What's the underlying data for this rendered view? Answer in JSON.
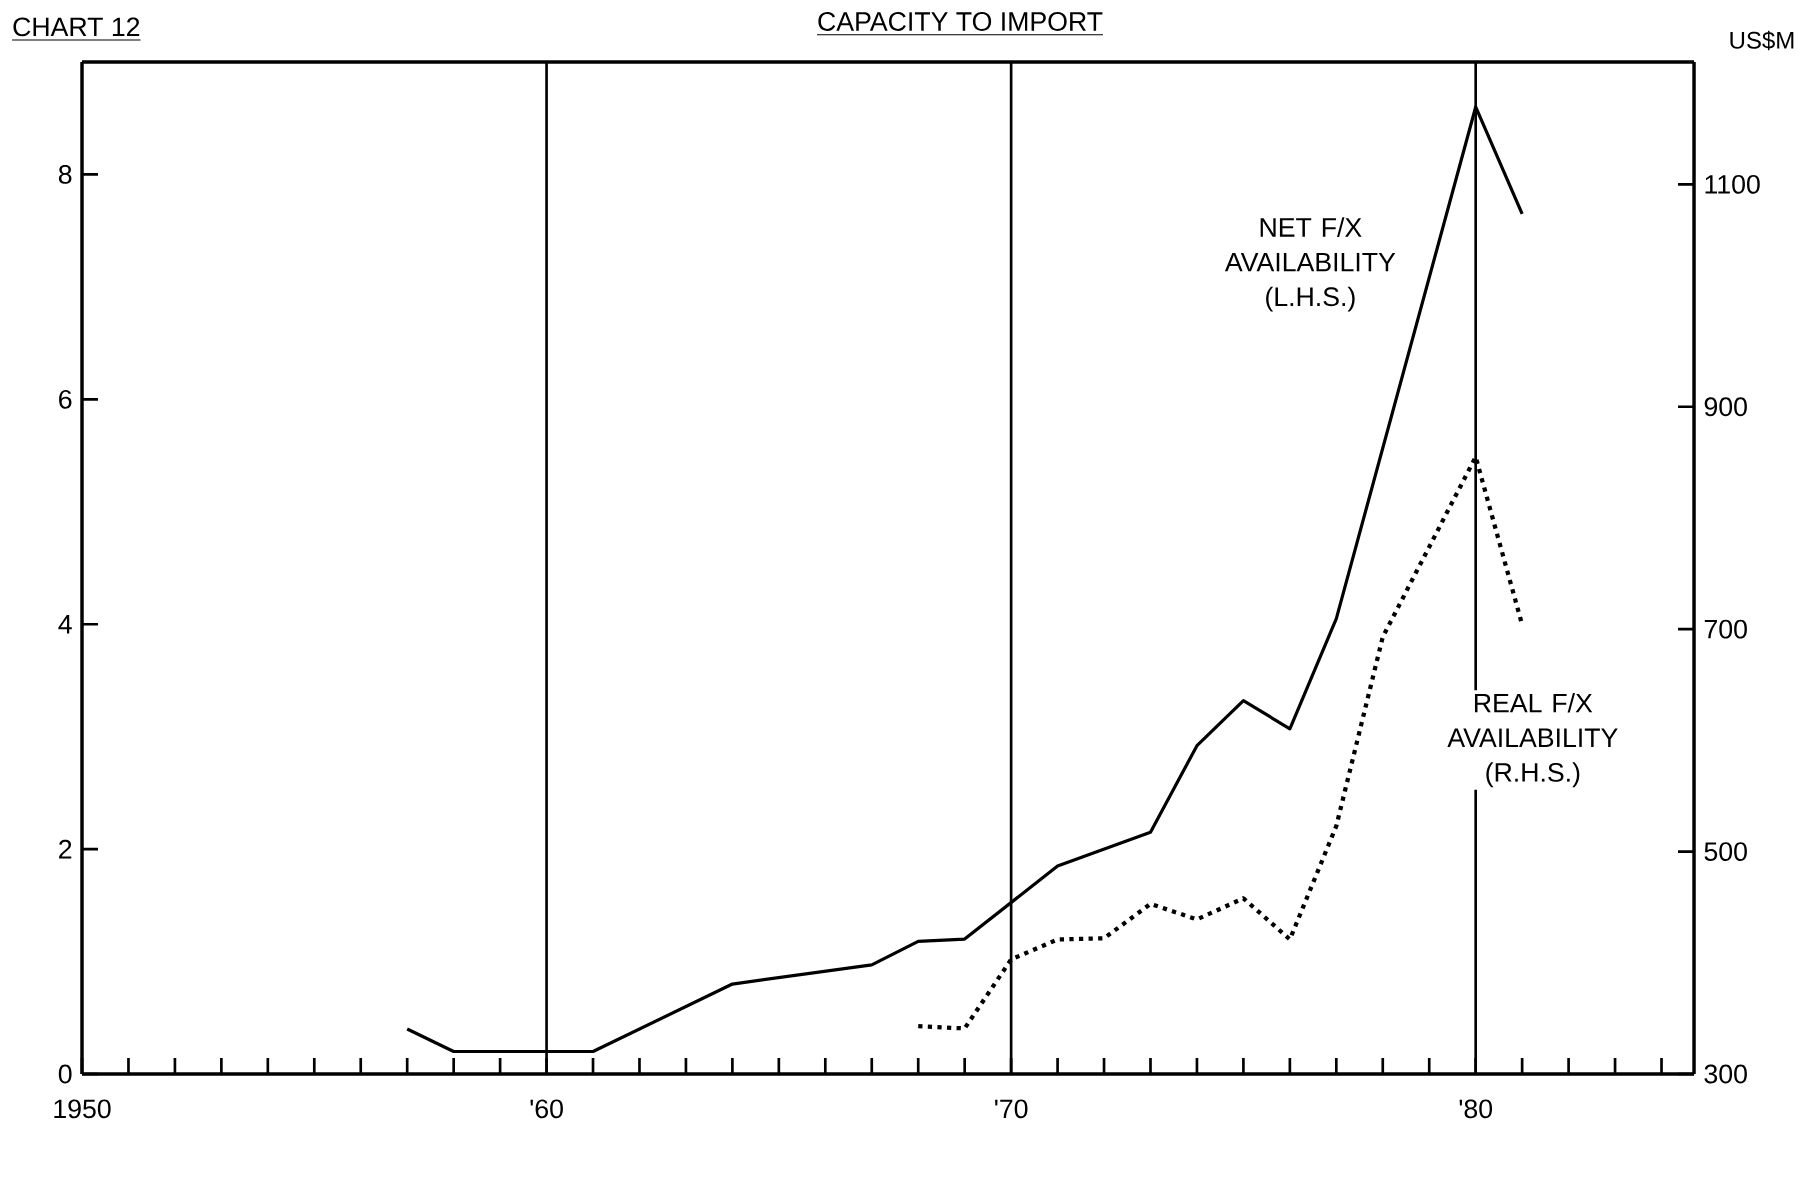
{
  "chart_data": {
    "type": "line",
    "title": "CAPACITY TO IMPORT",
    "y2label": "US$M",
    "annotations": [
      "CHART 12"
    ],
    "xlim": [
      1950,
      1984.7
    ],
    "ylim": [
      0,
      9
    ],
    "y2lim": [
      300,
      1210
    ],
    "xticks": [
      1950,
      {
        "value": 1951,
        "label": null
      },
      {
        "value": 1952,
        "label": null
      },
      {
        "value": 1953,
        "label": null
      },
      {
        "value": 1954,
        "label": null
      },
      {
        "value": 1955,
        "label": null
      },
      {
        "value": 1956,
        "label": null
      },
      {
        "value": 1957,
        "label": null
      },
      {
        "value": 1958,
        "label": null
      },
      {
        "value": 1959,
        "label": null
      },
      {
        "value": 1960,
        "label": "'60"
      },
      {
        "value": 1961,
        "label": null
      },
      {
        "value": 1962,
        "label": null
      },
      {
        "value": 1963,
        "label": null
      },
      {
        "value": 1964,
        "label": null
      },
      {
        "value": 1965,
        "label": null
      },
      {
        "value": 1966,
        "label": null
      },
      {
        "value": 1967,
        "label": null
      },
      {
        "value": 1968,
        "label": null
      },
      {
        "value": 1969,
        "label": null
      },
      {
        "value": 1970,
        "label": "'70"
      },
      {
        "value": 1971,
        "label": null
      },
      {
        "value": 1972,
        "label": null
      },
      {
        "value": 1973,
        "label": null
      },
      {
        "value": 1974,
        "label": null
      },
      {
        "value": 1975,
        "label": null
      },
      {
        "value": 1976,
        "label": null
      },
      {
        "value": 1977,
        "label": null
      },
      {
        "value": 1978,
        "label": null
      },
      {
        "value": 1979,
        "label": null
      },
      {
        "value": 1980,
        "label": "'80"
      },
      {
        "value": 1981,
        "label": null
      },
      {
        "value": 1982,
        "label": null
      },
      {
        "value": 1983,
        "label": null
      },
      {
        "value": 1984,
        "label": null
      }
    ],
    "yticks": [
      0,
      2,
      4,
      6,
      8
    ],
    "y2ticks": [
      300,
      500,
      700,
      900,
      1100
    ],
    "grid": false,
    "marker": "none",
    "ref_lines": [
      {
        "axis": "x",
        "value": 1960,
        "color": "#000000"
      },
      {
        "axis": "x",
        "value": 1970,
        "color": "#000000"
      },
      {
        "axis": "x",
        "value": 1980,
        "color": "#000000"
      }
    ],
    "series": [
      {
        "name": "NET F/X AVAILABILITY (L.H.S.)",
        "color": "#000000",
        "line_style": "solid",
        "x": [
          1957,
          1958,
          1961,
          1964,
          1967,
          1968,
          1969,
          1971,
          1973,
          1974,
          1975,
          1976,
          1977,
          1980,
          1981
        ],
        "values": [
          0.4,
          0.2,
          0.2,
          0.8,
          0.97,
          1.18,
          1.2,
          1.85,
          2.15,
          2.92,
          3.32,
          3.07,
          4.05,
          8.6,
          7.65
        ]
      },
      {
        "name": "REAL F/X AVAILABILITY (R.H.S.)",
        "color": "#000000",
        "line_style": "dotted",
        "axis": "y2",
        "x": [
          1968,
          1969,
          1970,
          1971,
          1972,
          1973,
          1974,
          1975,
          1976,
          1977,
          1978,
          1980,
          1981
        ],
        "values": [
          343,
          341,
          403,
          421,
          422,
          453,
          439,
          458,
          421,
          523,
          693,
          855,
          704
        ]
      }
    ]
  }
}
